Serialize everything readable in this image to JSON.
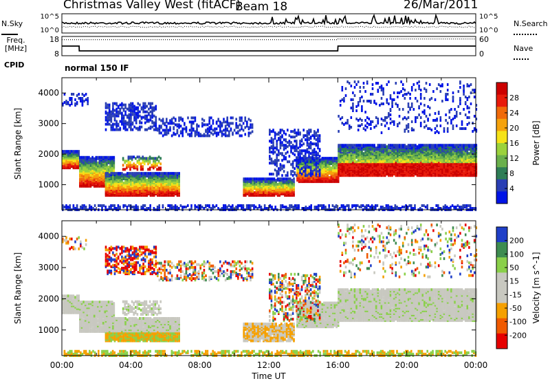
{
  "header": {
    "title": "Christmas Valley West (fitACF)",
    "beam": "Beam 18",
    "date": "26/Mar/2011"
  },
  "panels": {
    "nsky": "N.Sky",
    "nsearch": "N.Search",
    "freq": "Freq.",
    "freq_unit": "[MHz]",
    "nave": "Nave",
    "cpid": "CPID",
    "cpid_value": "normal 150 IF"
  },
  "colors": {
    "power": [
      "#0014e6",
      "#2a3fb4",
      "#2e7d56",
      "#6ab04c",
      "#9bd23c",
      "#f5e218",
      "#f5a20c",
      "#f06a0a",
      "#e81a0a",
      "#cc0000"
    ],
    "velocity": [
      "#e60000",
      "#f05a00",
      "#f5a000",
      "#c8c8c0",
      "#c8c8c0",
      "#8ad04a",
      "#3e8c50",
      "#1f3fc8"
    ]
  },
  "chart_data": [
    {
      "type": "line",
      "name": "noise-panel",
      "y_ticks_left": [
        "10^5",
        "10^0"
      ],
      "y_ticks_right": [
        "10^5",
        "10^0"
      ],
      "series": [
        {
          "name": "N.Sky",
          "style": "solid"
        },
        {
          "name": "N.Search",
          "style": "dotted"
        }
      ]
    },
    {
      "type": "line",
      "name": "frequency-panel",
      "y_ticks_left": [
        "18",
        "8"
      ],
      "y_ticks_right": [
        "60",
        "0"
      ],
      "x": [
        0,
        1,
        1.01,
        16,
        16.01,
        24
      ],
      "series": [
        {
          "name": "Freq.",
          "style": "solid",
          "values": [
            13,
            13,
            10.5,
            10.5,
            13,
            13
          ]
        },
        {
          "name": "Nave",
          "style": "dotted",
          "values": [
            50,
            50,
            50,
            50,
            52,
            52
          ]
        }
      ]
    },
    {
      "type": "heatmap",
      "name": "power",
      "ylabel": "Slant Range [km]",
      "ylim": [
        180,
        4500
      ],
      "yticks": [
        1000,
        2000,
        3000,
        4000
      ],
      "xlim": [
        0,
        24
      ],
      "colorbar": {
        "label": "Power [dB]",
        "ticks": [
          4,
          8,
          12,
          16,
          20,
          24,
          28
        ],
        "range": [
          0,
          30
        ]
      }
    },
    {
      "type": "heatmap",
      "name": "velocity",
      "ylabel": "Slant Range [km]",
      "ylim": [
        180,
        4500
      ],
      "yticks": [
        1000,
        2000,
        3000,
        4000
      ],
      "xlim": [
        0,
        24
      ],
      "xlabel": "Time UT",
      "xtick_labels": [
        "00:00",
        "04:00",
        "08:00",
        "12:00",
        "16:00",
        "20:00",
        "00:00"
      ],
      "colorbar": {
        "label": "Velocity [m s^-1]",
        "ticks": [
          "200",
          "100",
          "50",
          "15",
          "-15",
          "-50",
          "-100",
          "-200"
        ]
      }
    }
  ]
}
